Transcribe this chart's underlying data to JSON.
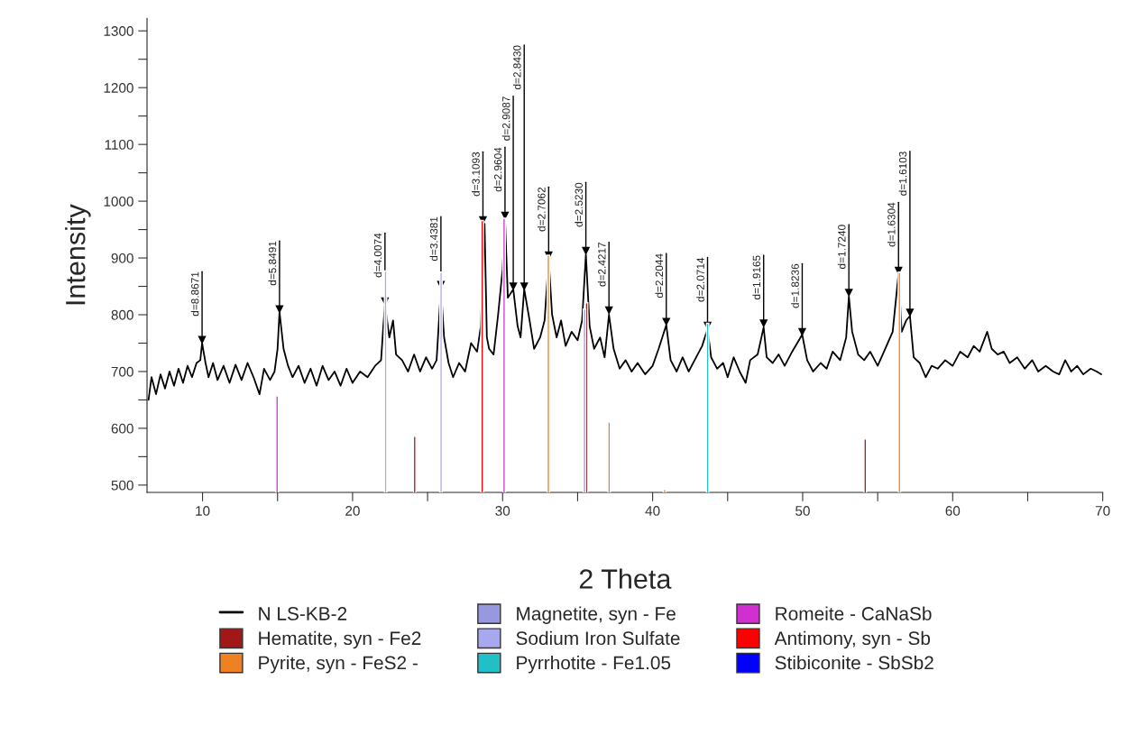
{
  "chart_data": {
    "type": "line",
    "xlabel": "2 Theta",
    "ylabel": "Intensity",
    "xlim": [
      6.3,
      70
    ],
    "ylim": [
      487,
      1322
    ],
    "xticks": [
      10,
      {
        "value": 15,
        "label": null
      },
      20,
      {
        "value": 25,
        "label": null
      },
      30,
      {
        "value": 35,
        "label": null
      },
      40,
      {
        "value": 45,
        "label": null
      },
      50,
      {
        "value": 55,
        "label": null
      },
      60,
      {
        "value": 65,
        "label": null
      },
      70
    ],
    "yticks": [
      500,
      {
        "value": 550,
        "label": null
      },
      600,
      {
        "value": 650,
        "label": null
      },
      700,
      {
        "value": 750,
        "label": null
      },
      800,
      {
        "value": 850,
        "label": null
      },
      900,
      {
        "value": 950,
        "label": null
      },
      1000,
      {
        "value": 1050,
        "label": null
      },
      1100,
      {
        "value": 1150,
        "label": null
      },
      1200,
      {
        "value": 1250,
        "label": null
      },
      1300
    ],
    "grid": false,
    "legend": "bottom",
    "series": [
      {
        "name": "N LS-KB-2",
        "color": "#000000",
        "x": [
          6.4,
          6.6,
          6.9,
          7.2,
          7.5,
          7.8,
          8.1,
          8.4,
          8.7,
          9.0,
          9.3,
          9.6,
          9.85,
          9.97,
          10.2,
          10.4,
          10.7,
          11.0,
          11.4,
          11.8,
          12.2,
          12.6,
          13.0,
          13.4,
          13.8,
          14.1,
          14.5,
          14.8,
          15.0,
          15.13,
          15.4,
          15.7,
          16.0,
          16.4,
          16.8,
          17.2,
          17.6,
          18.0,
          18.4,
          18.8,
          19.2,
          19.6,
          20.0,
          20.5,
          21.0,
          21.5,
          21.9,
          22.05,
          22.16,
          22.45,
          22.7,
          22.9,
          23.3,
          23.7,
          24.1,
          24.5,
          24.9,
          25.3,
          25.6,
          25.89,
          26.1,
          26.4,
          26.7,
          27.1,
          27.5,
          27.9,
          28.3,
          28.55,
          28.8,
          28.95,
          29.1,
          29.4,
          29.7,
          30.0,
          30.16,
          30.35,
          30.71,
          31.0,
          31.2,
          31.44,
          31.8,
          32.1,
          32.5,
          32.8,
          33.07,
          33.3,
          33.6,
          33.9,
          34.2,
          34.6,
          35.0,
          35.3,
          35.55,
          35.8,
          36.1,
          36.5,
          36.8,
          37.09,
          37.4,
          37.8,
          38.2,
          38.6,
          39.0,
          39.5,
          40.0,
          40.4,
          40.91,
          41.2,
          41.6,
          42.0,
          42.4,
          42.8,
          43.3,
          43.66,
          43.9,
          44.3,
          44.7,
          45.0,
          45.4,
          45.8,
          46.2,
          46.5,
          47.0,
          47.4,
          47.6,
          48.0,
          48.4,
          48.8,
          49.3,
          49.97,
          50.3,
          50.7,
          51.2,
          51.6,
          52.0,
          52.5,
          52.9,
          53.08,
          53.3,
          53.7,
          54.1,
          54.5,
          55.0,
          55.5,
          56.0,
          56.39,
          56.6,
          56.9,
          57.15,
          57.4,
          57.8,
          58.2,
          58.6,
          59.0,
          59.5,
          60.0,
          60.5,
          61.0,
          61.4,
          61.8,
          62.3,
          62.6,
          63.0,
          63.4,
          63.8,
          64.3,
          64.8,
          65.3,
          65.7,
          66.2,
          66.7,
          67.1,
          67.5,
          67.9,
          68.3,
          68.7,
          69.2,
          69.6,
          69.9
        ],
        "values": [
          650,
          690,
          660,
          695,
          670,
          700,
          675,
          705,
          680,
          710,
          690,
          715,
          720,
          750,
          715,
          690,
          715,
          685,
          710,
          680,
          712,
          685,
          715,
          690,
          660,
          705,
          685,
          700,
          740,
          805,
          740,
          710,
          690,
          710,
          680,
          705,
          675,
          710,
          685,
          700,
          675,
          705,
          680,
          700,
          690,
          710,
          720,
          780,
          818,
          760,
          790,
          730,
          720,
          700,
          730,
          700,
          725,
          705,
          720,
          847,
          760,
          715,
          690,
          715,
          700,
          750,
          735,
          780,
          960,
          760,
          740,
          730,
          800,
          880,
          970,
          830,
          845,
          780,
          760,
          845,
          790,
          740,
          760,
          790,
          898,
          800,
          760,
          790,
          745,
          770,
          755,
          790,
          906,
          780,
          740,
          760,
          725,
          800,
          740,
          705,
          720,
          700,
          715,
          695,
          710,
          740,
          782,
          720,
          700,
          725,
          700,
          720,
          745,
          775,
          725,
          705,
          715,
          690,
          725,
          700,
          680,
          720,
          730,
          778,
          725,
          715,
          730,
          710,
          735,
          765,
          720,
          700,
          715,
          705,
          735,
          720,
          760,
          832,
          770,
          730,
          720,
          735,
          710,
          740,
          770,
          872,
          770,
          790,
          798,
          725,
          715,
          690,
          710,
          705,
          720,
          710,
          735,
          725,
          745,
          735,
          770,
          740,
          730,
          735,
          715,
          725,
          705,
          720,
          700,
          710,
          700,
          695,
          720,
          700,
          710,
          695,
          705,
          700,
          695
        ]
      },
      {
        "name": "Hematite, syn - Fe2",
        "type": "bar",
        "color": "#a01818",
        "x": [
          24.14,
          35.6,
          54.17
        ],
        "values": [
          586,
          821,
          581
        ]
      },
      {
        "name": "Pyrite, syn - FeS2 -",
        "type": "bar",
        "color": "#f08020",
        "x": [
          33.05,
          37.1,
          40.8,
          56.45
        ],
        "values": [
          905,
          611,
          492,
          875
        ]
      },
      {
        "name": "Magnetite, syn - Fe",
        "type": "bar",
        "color": "#9898e0",
        "x": [
          35.46
        ],
        "values": [
          810
        ]
      },
      {
        "name": "Sodium Iron Sulfate",
        "type": "bar",
        "color": "#a8a8f0",
        "x": [
          22.2,
          25.9
        ],
        "values": [
          877,
          875
        ]
      },
      {
        "name": "Pyrrhotite - Fe1.05",
        "type": "bar",
        "color": "#20c0c8",
        "x": [
          43.67
        ],
        "values": [
          785
        ]
      },
      {
        "name": "Romeite - CaNaSb",
        "type": "bar",
        "color": "#d030d0",
        "x": [
          14.97,
          30.1
        ],
        "values": [
          657,
          970
        ]
      },
      {
        "name": "Antimony, syn - Sb",
        "type": "bar",
        "color": "#ff0000",
        "x": [
          28.64
        ],
        "values": [
          966
        ]
      },
      {
        "name": "Stibiconite - SbSb2",
        "type": "bar",
        "color": "#0000ff"
      }
    ],
    "annotations": [
      {
        "text": "d=8.8671",
        "x": 9.97,
        "y": 756
      },
      {
        "text": "d=5.8491",
        "x": 15.13,
        "y": 810
      },
      {
        "text": "d=4.0074",
        "x": 22.16,
        "y": 824
      },
      {
        "text": "d=3.4381",
        "x": 25.89,
        "y": 853
      },
      {
        "text": "d=3.1093",
        "x": 28.69,
        "y": 967
      },
      {
        "text": "d=2.9604",
        "x": 30.16,
        "y": 975
      },
      {
        "text": "d=2.9087",
        "x": 30.71,
        "y": 850
      },
      {
        "text": "d=2.8430",
        "x": 31.44,
        "y": 850
      },
      {
        "text": "d=2.7062",
        "x": 33.07,
        "y": 905
      },
      {
        "text": "d=2.5230",
        "x": 35.55,
        "y": 913
      },
      {
        "text": "d=2.4217",
        "x": 37.09,
        "y": 808
      },
      {
        "text": "d=2.2044",
        "x": 40.91,
        "y": 788
      },
      {
        "text": "d=2.0714",
        "x": 43.66,
        "y": 781
      },
      {
        "text": "d=1.9165",
        "x": 47.4,
        "y": 785
      },
      {
        "text": "d=1.8236",
        "x": 49.97,
        "y": 770
      },
      {
        "text": "d=1.7240",
        "x": 53.08,
        "y": 839
      },
      {
        "text": "d=1.6304",
        "x": 56.39,
        "y": 878
      },
      {
        "text": "d=1.6103",
        "x": 57.15,
        "y": 804
      }
    ]
  }
}
